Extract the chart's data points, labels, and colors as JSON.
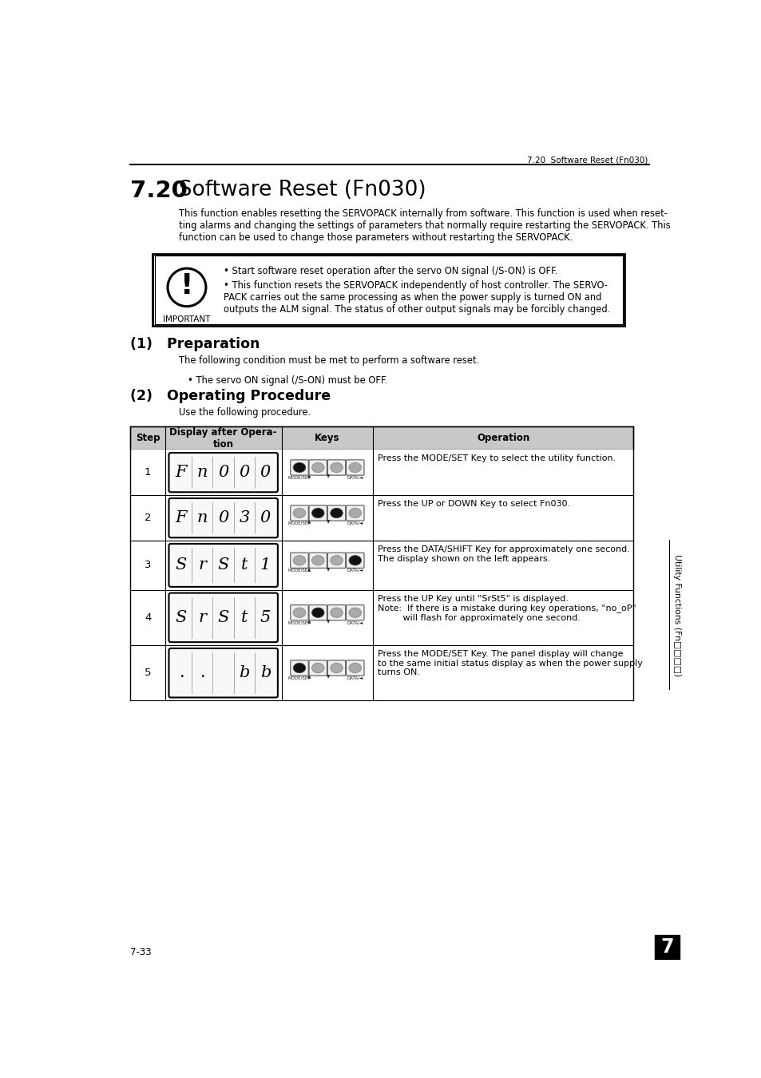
{
  "page_title_num": "7.20",
  "page_title_text": "  Software Reset (Fn030)",
  "header_text": "7.20  Software Reset (Fn030)",
  "intro_text": "This function enables resetting the SERVOPACK internally from software. This function is used when reset-\nting alarms and changing the settings of parameters that normally require restarting the SERVOPACK. This\nfunction can be used to change those parameters without restarting the SERVOPACK.",
  "important_bullet1": "Start software reset operation after the servo ON signal (/S-ON) is OFF.",
  "important_bullet2": "This function resets the SERVOPACK independently of host controller. The SERVO-\nPACK carries out the same processing as when the power supply is turned ON and\noutputs the ALM signal. The status of other output signals may be forcibly changed.",
  "section1_title": "(1)   Preparation",
  "section1_text": "The following condition must be met to perform a software reset.",
  "section1_bullet": "• The servo ON signal (/S-ON) must be OFF.",
  "section2_title": "(2)   Operating Procedure",
  "section2_text": "Use the following procedure.",
  "table_headers": [
    "Step",
    "Display after Opera-\ntion",
    "Keys",
    "Operation"
  ],
  "table_rows": [
    {
      "step": "1",
      "display_chars": [
        "F",
        "n",
        "0",
        "0",
        "0"
      ],
      "active_keys": [
        0
      ],
      "key_labels_bottom": [
        "MODE/SET",
        "▲",
        "▼",
        "DATA/◄"
      ],
      "operation": "Press the MODE/SET Key to select the utility function."
    },
    {
      "step": "2",
      "display_chars": [
        "F",
        "n",
        "0",
        "3",
        "0"
      ],
      "active_keys": [
        1,
        2
      ],
      "key_labels_bottom": [
        "MODE/SET",
        "▲",
        "▼",
        "DATA/◄"
      ],
      "operation": "Press the UP or DOWN Key to select Fn030."
    },
    {
      "step": "3",
      "display_chars": [
        "S",
        "r",
        "S",
        "t",
        "1"
      ],
      "active_keys": [
        3
      ],
      "key_labels_bottom": [
        "MODE/SET",
        "▲",
        "▼",
        "DATA/◄"
      ],
      "operation": "Press the DATA/SHIFT Key for approximately one second.\nThe display shown on the left appears."
    },
    {
      "step": "4",
      "display_chars": [
        "S",
        "r",
        "S",
        "t",
        "5"
      ],
      "active_keys": [
        1
      ],
      "key_labels_bottom": [
        "MODE/SET",
        "▲",
        "▼",
        "DATA/◄"
      ],
      "operation": "Press the UP Key until \"SrSt5\" is displayed.\nNote:  If there is a mistake during key operations, \"no_oP\"\n         will flash for approximately one second."
    },
    {
      "step": "5",
      "display_chars": [
        ".",
        ".",
        " ",
        "b",
        "b"
      ],
      "active_keys": [
        0
      ],
      "key_labels_bottom": [
        "MODE/SET",
        "▲",
        "▼",
        "DATA/◄"
      ],
      "operation": "Press the MODE/SET Key. The panel display will change\nto the same initial status display as when the power supply\nturns ON."
    }
  ],
  "sidebar_text": "Utility Functions (Fn□□□□)",
  "page_num": "7-33",
  "tab_num": "7",
  "bg_color": "#ffffff",
  "table_header_bg": "#c8c8c8"
}
